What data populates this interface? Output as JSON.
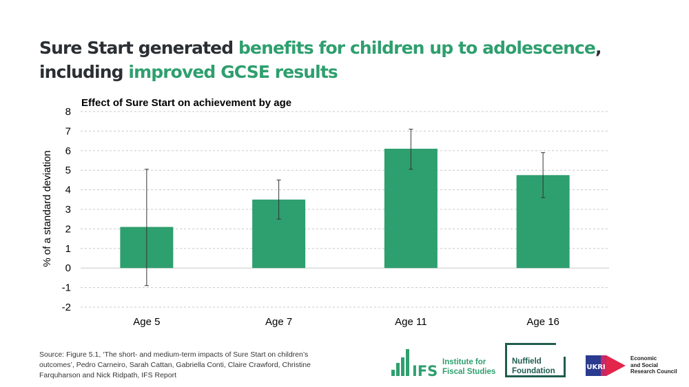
{
  "headline": {
    "part1": "Sure Start generated ",
    "part2": "benefits for children up to adolescence",
    "part3": ", including ",
    "part4": "improved GCSE results"
  },
  "colors": {
    "accent": "#2e9f6e",
    "bar": "#2e9f6e",
    "dark": "#2b2f33"
  },
  "chart_data": {
    "type": "bar",
    "title": "Effect of Sure Start on achievement by age",
    "xlabel": "",
    "ylabel": "% of a standard deviation",
    "categories": [
      "Age 5",
      "Age 7",
      "Age 11",
      "Age 16"
    ],
    "values": [
      2.1,
      3.5,
      6.1,
      4.75
    ],
    "error_low": [
      -0.9,
      2.5,
      5.05,
      3.6
    ],
    "error_high": [
      5.05,
      4.5,
      7.1,
      5.9
    ],
    "ylim": [
      -2,
      8
    ],
    "yticks": [
      -2,
      -1,
      0,
      1,
      2,
      3,
      4,
      5,
      6,
      7,
      8
    ],
    "grid": true
  },
  "source": "Source: Figure 5.1, ‘The short- and medium-term impacts of Sure Start on children’s outcomes’, Pedro Carneiro, Sarah Cattan, Gabriella Conti, Claire Crawford, Christine Farquharson and Nick Ridpath, IFS Report",
  "logos": {
    "ifs_mark": "IFS",
    "ifs_line1": "Institute for",
    "ifs_line2": "Fiscal Studies",
    "nuffield_line1": "Nuffield",
    "nuffield_line2": "Foundation",
    "ukri_mark": "UKRI",
    "esrc_line1": "Economic",
    "esrc_line2": "and Social",
    "esrc_line3": "Research Council"
  }
}
